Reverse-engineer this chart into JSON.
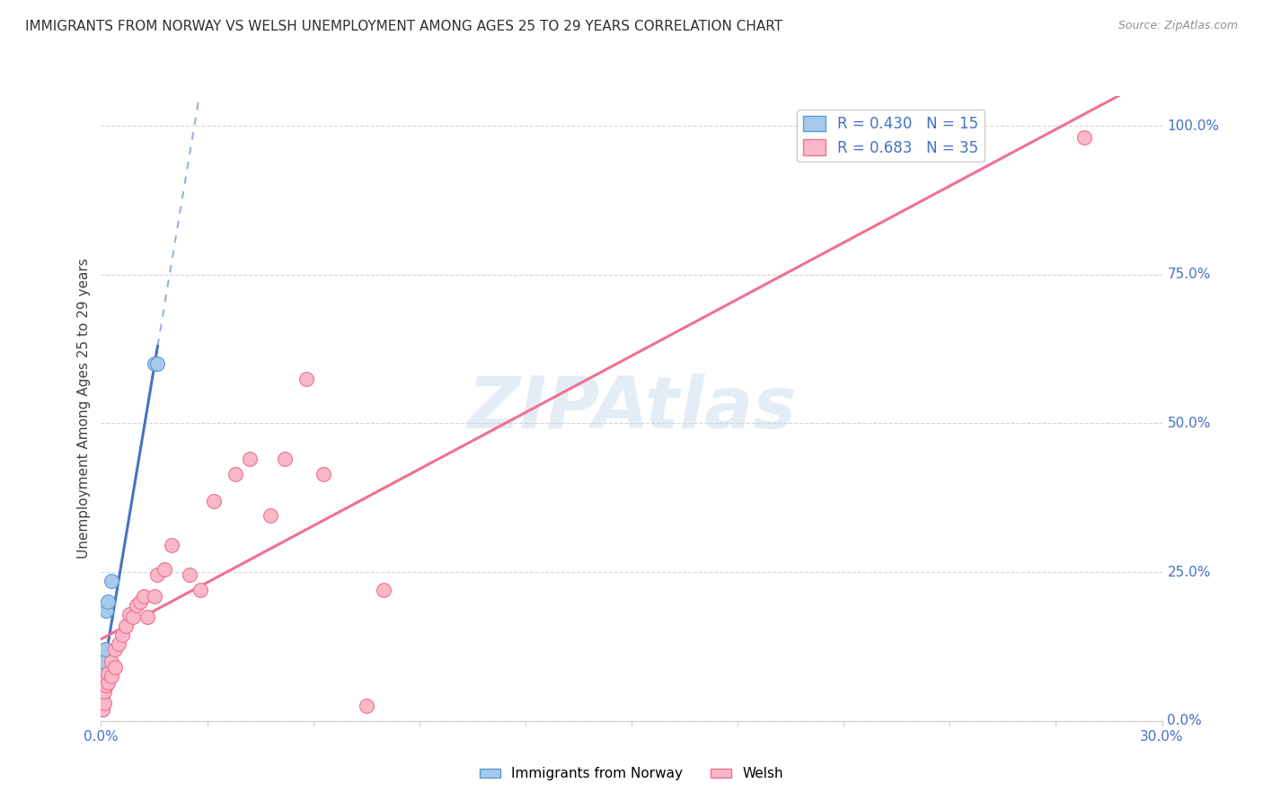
{
  "title": "IMMIGRANTS FROM NORWAY VS WELSH UNEMPLOYMENT AMONG AGES 25 TO 29 YEARS CORRELATION CHART",
  "source": "Source: ZipAtlas.com",
  "ylabel": "Unemployment Among Ages 25 to 29 years",
  "ylabel_right_ticks": [
    "0.0%",
    "25.0%",
    "50.0%",
    "75.0%",
    "100.0%"
  ],
  "ylabel_right_vals": [
    0.0,
    0.25,
    0.5,
    0.75,
    1.0
  ],
  "legend_label1": "Immigrants from Norway",
  "legend_label2": "Welsh",
  "R1": 0.43,
  "N1": 15,
  "R2": 0.683,
  "N2": 35,
  "color_norway_fill": "#a8c8ea",
  "color_norway_edge": "#5b9bd5",
  "color_welsh_fill": "#f9b8c8",
  "color_welsh_edge": "#f07090",
  "color_norway_line": "#4472c4",
  "color_welsh_line": "#f07090",
  "norway_x": [
    0.0003,
    0.0003,
    0.0004,
    0.0005,
    0.0006,
    0.0007,
    0.0008,
    0.001,
    0.001,
    0.0012,
    0.0015,
    0.002,
    0.003,
    0.015,
    0.016
  ],
  "norway_y": [
    0.02,
    0.03,
    0.04,
    0.05,
    0.06,
    0.065,
    0.075,
    0.085,
    0.1,
    0.12,
    0.185,
    0.2,
    0.235,
    0.6,
    0.6
  ],
  "welsh_x": [
    0.0005,
    0.001,
    0.001,
    0.0015,
    0.002,
    0.002,
    0.003,
    0.003,
    0.004,
    0.004,
    0.005,
    0.006,
    0.007,
    0.008,
    0.009,
    0.01,
    0.011,
    0.012,
    0.013,
    0.015,
    0.016,
    0.018,
    0.02,
    0.025,
    0.028,
    0.032,
    0.038,
    0.042,
    0.048,
    0.052,
    0.058,
    0.063,
    0.075,
    0.08,
    0.278
  ],
  "welsh_y": [
    0.02,
    0.03,
    0.05,
    0.06,
    0.065,
    0.08,
    0.075,
    0.1,
    0.09,
    0.12,
    0.13,
    0.145,
    0.16,
    0.18,
    0.175,
    0.195,
    0.2,
    0.21,
    0.175,
    0.21,
    0.245,
    0.255,
    0.295,
    0.245,
    0.22,
    0.37,
    0.415,
    0.44,
    0.345,
    0.44,
    0.575,
    0.415,
    0.025,
    0.22,
    0.98
  ],
  "xmin": 0.0,
  "xmax": 0.3,
  "ymin": 0.0,
  "ymax": 1.05,
  "watermark": "ZIPAtlas",
  "background_color": "#ffffff"
}
